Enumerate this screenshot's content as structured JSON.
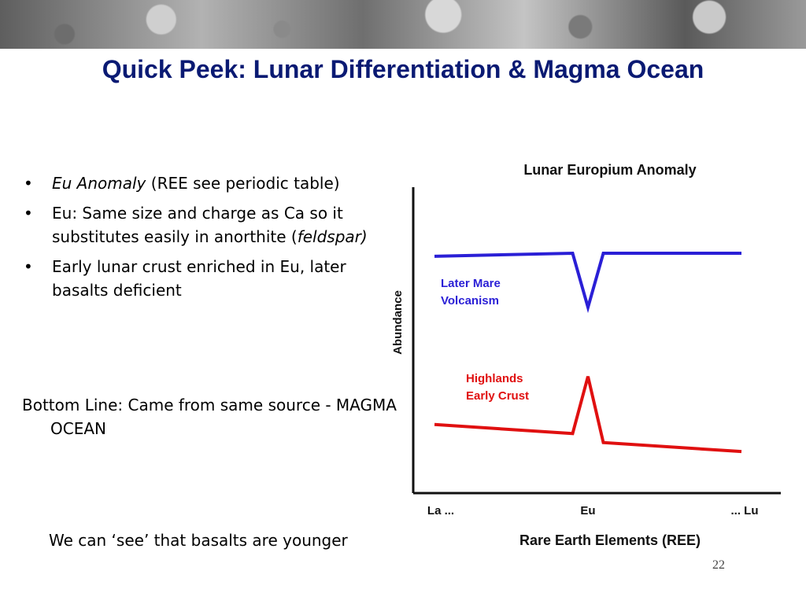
{
  "slide": {
    "title": "Quick Peek: Lunar Differentiation & Magma Ocean",
    "bullets": [
      {
        "italic": "Eu Anomaly",
        "text": " (REE see periodic table)"
      },
      {
        "text": "Eu: Same size and charge as Ca so it substitutes easily in anorthite (",
        "italic_end": "feldspar)"
      },
      {
        "text": "Early lunar crust enriched in Eu, later basalts deficient"
      }
    ],
    "bullet_symbol": "•",
    "bottom_line": "Bottom Line: Came from same source - MAGMA OCEAN",
    "footnote": "We can ‘see’ that basalts are younger",
    "page_number": "22"
  },
  "chart_data": {
    "type": "line",
    "title": "Lunar Europium Anomaly",
    "xlabel": "Rare Earth Elements (REE)",
    "ylabel": "Abundance",
    "x_ticks": [
      "La ...",
      "Eu",
      "... Lu"
    ],
    "x": [
      0,
      0.45,
      0.5,
      0.55,
      1
    ],
    "ylim": [
      0,
      100
    ],
    "grid": false,
    "series": [
      {
        "name": "Later Mare Volcanism",
        "color": "#2a1fd6",
        "values": [
          77,
          78,
          60,
          78,
          78
        ]
      },
      {
        "name": "Highlands Early Crust",
        "color": "#e01010",
        "values": [
          21,
          18,
          37,
          15,
          12
        ]
      }
    ]
  }
}
